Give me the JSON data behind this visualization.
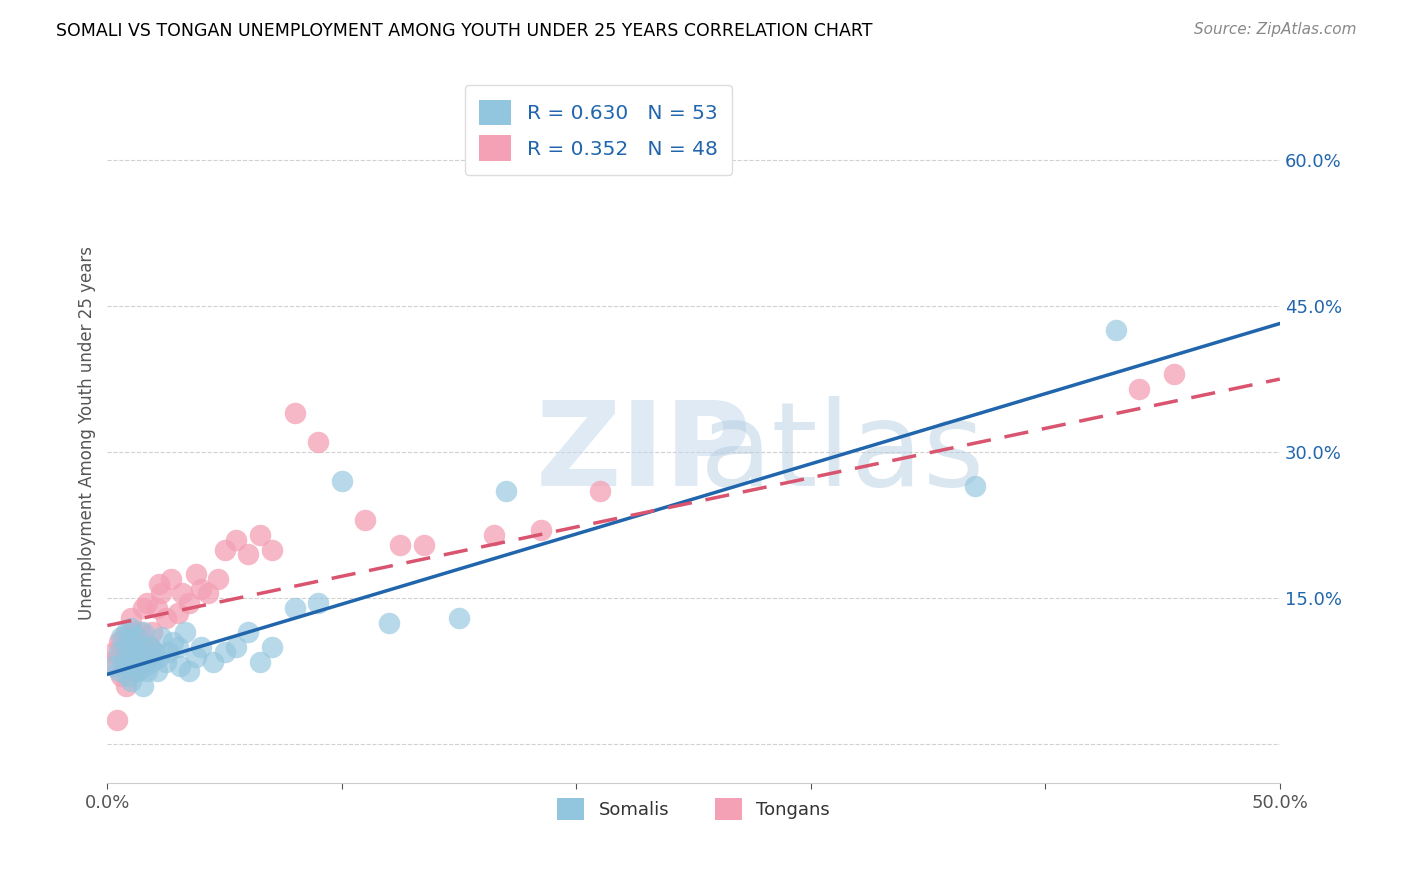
{
  "title": "SOMALI VS TONGAN UNEMPLOYMENT AMONG YOUTH UNDER 25 YEARS CORRELATION CHART",
  "source": "Source: ZipAtlas.com",
  "ylabel": "Unemployment Among Youth under 25 years",
  "xlim": [
    0.0,
    0.5
  ],
  "ylim": [
    -0.04,
    0.68
  ],
  "somali_R": 0.63,
  "somali_N": 53,
  "tongan_R": 0.352,
  "tongan_N": 48,
  "somali_color": "#92c5de",
  "tongan_color": "#f4a0b5",
  "somali_line_color": "#2166ac",
  "tongan_line_color": "#d9546e",
  "legend_text_color": "#2166ac",
  "yticks_right": [
    0.0,
    0.15,
    0.3,
    0.45,
    0.6
  ],
  "ytick_labels_right": [
    "",
    "15.0%",
    "30.0%",
    "45.0%",
    "60.0%"
  ],
  "xticks": [
    0.0,
    0.1,
    0.2,
    0.3,
    0.4,
    0.5
  ],
  "xticklabels": [
    "0.0%",
    "",
    "",
    "",
    "",
    "50.0%"
  ],
  "somali_line_x0": 0.0,
  "somali_line_y0": 0.072,
  "somali_line_x1": 0.5,
  "somali_line_y1": 0.432,
  "tongan_line_x0": 0.0,
  "tongan_line_y0": 0.122,
  "tongan_line_x1": 0.5,
  "tongan_line_y1": 0.375,
  "somali_x": [
    0.003,
    0.005,
    0.005,
    0.006,
    0.007,
    0.008,
    0.008,
    0.009,
    0.01,
    0.01,
    0.01,
    0.01,
    0.011,
    0.012,
    0.012,
    0.013,
    0.013,
    0.014,
    0.015,
    0.015,
    0.015,
    0.016,
    0.016,
    0.017,
    0.018,
    0.019,
    0.02,
    0.021,
    0.022,
    0.023,
    0.025,
    0.026,
    0.028,
    0.03,
    0.031,
    0.033,
    0.035,
    0.038,
    0.04,
    0.045,
    0.05,
    0.055,
    0.06,
    0.065,
    0.07,
    0.08,
    0.09,
    0.1,
    0.12,
    0.15,
    0.17,
    0.37,
    0.43
  ],
  "somali_y": [
    0.08,
    0.075,
    0.095,
    0.11,
    0.085,
    0.1,
    0.115,
    0.07,
    0.09,
    0.105,
    0.12,
    0.065,
    0.095,
    0.08,
    0.11,
    0.075,
    0.095,
    0.085,
    0.1,
    0.115,
    0.06,
    0.09,
    0.08,
    0.075,
    0.1,
    0.085,
    0.095,
    0.075,
    0.09,
    0.11,
    0.085,
    0.095,
    0.105,
    0.1,
    0.08,
    0.115,
    0.075,
    0.09,
    0.1,
    0.085,
    0.095,
    0.1,
    0.115,
    0.085,
    0.1,
    0.14,
    0.145,
    0.27,
    0.125,
    0.13,
    0.26,
    0.265,
    0.425
  ],
  "tongan_x": [
    0.002,
    0.003,
    0.004,
    0.005,
    0.006,
    0.007,
    0.008,
    0.009,
    0.01,
    0.01,
    0.011,
    0.012,
    0.013,
    0.014,
    0.015,
    0.015,
    0.016,
    0.017,
    0.018,
    0.019,
    0.02,
    0.021,
    0.022,
    0.023,
    0.025,
    0.027,
    0.03,
    0.032,
    0.035,
    0.038,
    0.04,
    0.043,
    0.047,
    0.05,
    0.055,
    0.06,
    0.065,
    0.07,
    0.08,
    0.09,
    0.11,
    0.125,
    0.135,
    0.165,
    0.185,
    0.21,
    0.44,
    0.455
  ],
  "tongan_y": [
    0.085,
    0.095,
    0.025,
    0.105,
    0.07,
    0.11,
    0.06,
    0.08,
    0.13,
    0.095,
    0.115,
    0.075,
    0.09,
    0.115,
    0.1,
    0.14,
    0.085,
    0.145,
    0.1,
    0.115,
    0.095,
    0.14,
    0.165,
    0.155,
    0.13,
    0.17,
    0.135,
    0.155,
    0.145,
    0.175,
    0.16,
    0.155,
    0.17,
    0.2,
    0.21,
    0.195,
    0.215,
    0.2,
    0.34,
    0.31,
    0.23,
    0.205,
    0.205,
    0.215,
    0.22,
    0.26,
    0.365,
    0.38
  ]
}
